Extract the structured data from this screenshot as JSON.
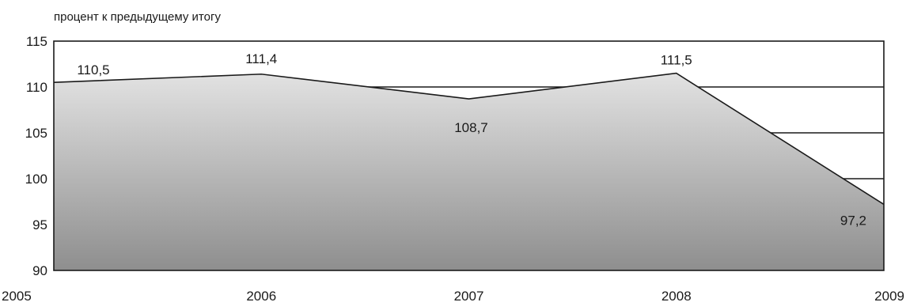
{
  "chart_data": {
    "type": "area",
    "title": "",
    "xlabel": "",
    "ylabel": "процент к предыдущему итогу",
    "x": [
      "2005",
      "2006",
      "2007",
      "2008",
      "2009"
    ],
    "series": [
      {
        "values": [
          110.5,
          111.4,
          108.7,
          111.5,
          97.2
        ],
        "labels": [
          "110,5",
          "111,4",
          "108,7",
          "111,5",
          "97,2"
        ]
      }
    ],
    "ylim": [
      90,
      115
    ],
    "yticks": [
      90,
      95,
      100,
      105,
      110,
      115
    ],
    "grid": true,
    "legend": "none",
    "colors": {
      "fill_top": "#e2e2e2",
      "fill_bottom": "#8e8e8e",
      "line": "#1a1a1a",
      "grid": "#1a1a1a"
    }
  }
}
